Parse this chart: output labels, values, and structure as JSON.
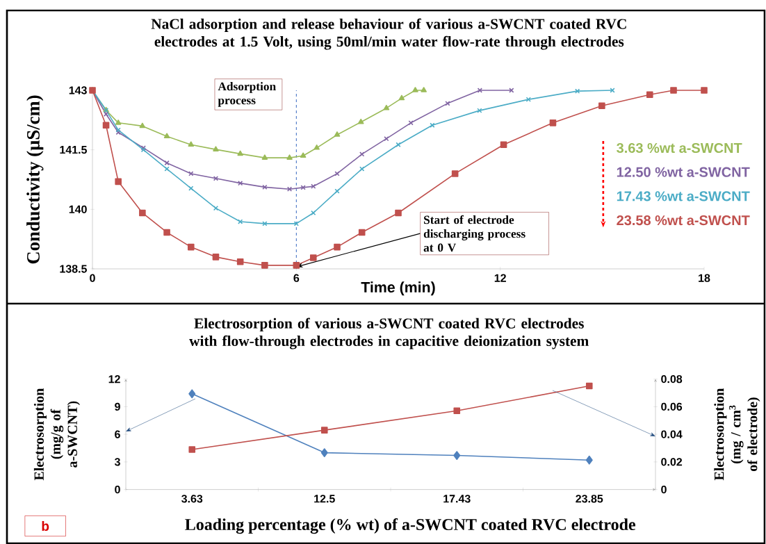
{
  "chart_data": [
    {
      "type": "line",
      "title": "NaCl adsorption and release behaviour of various a-SWCNT coated RVC electrodes at 1.5 Volt, using 50ml/min water flow-rate through electrodes",
      "xlabel": "Time (min)",
      "ylabel": "Conductivity (µS/cm)",
      "xlim": [
        0,
        18
      ],
      "ylim": [
        138.5,
        143
      ],
      "xticks": [
        0,
        6,
        12,
        18
      ],
      "yticks": [
        138.5,
        140,
        141.5,
        143
      ],
      "ref_lines": [
        {
          "axis": "x",
          "value": 6,
          "color": "#4472c4",
          "line_style": "dashed"
        }
      ],
      "annotations": [
        "Adsorption process",
        {
          "text": "Start of electrode discharging process at 0 V",
          "x": 6,
          "y": 138.55
        }
      ],
      "series": [
        {
          "name": "3.63 %wt a-SWCNT",
          "color": "#9bbb59",
          "marker": "triangle",
          "x": [
            0,
            0.4,
            0.76,
            1.47,
            2.19,
            2.9,
            3.63,
            4.35,
            5.07,
            5.8,
            6.2,
            6.6,
            7.2,
            7.9,
            8.65,
            9.1,
            9.5,
            9.75
          ],
          "values": [
            143,
            142.5,
            142.18,
            142.1,
            141.84,
            141.63,
            141.51,
            141.4,
            141.3,
            141.3,
            141.35,
            141.55,
            141.88,
            142.2,
            142.55,
            142.8,
            143,
            143
          ]
        },
        {
          "name": "12.50 %wt a-SWCNT",
          "color": "#8064a2",
          "marker": "cross",
          "x": [
            0,
            0.4,
            0.76,
            1.5,
            2.19,
            2.9,
            3.63,
            4.35,
            5.07,
            5.8,
            6.2,
            6.5,
            7.2,
            7.93,
            8.65,
            9.37,
            10.45,
            11.4,
            12.33
          ],
          "values": [
            143,
            142.4,
            141.94,
            141.55,
            141.17,
            140.9,
            140.78,
            140.66,
            140.56,
            140.51,
            140.55,
            140.58,
            140.9,
            141.39,
            141.78,
            142.18,
            142.67,
            143,
            143
          ]
        },
        {
          "name": "17.43 %wt a-SWCNT",
          "color": "#4bacc6",
          "marker": "cross",
          "x": [
            0,
            0.4,
            0.76,
            1.5,
            2.19,
            2.9,
            3.63,
            4.35,
            5.07,
            6.0,
            6.5,
            7.2,
            7.93,
            9.0,
            10.0,
            11.39,
            12.83,
            14.27,
            15.3
          ],
          "values": [
            143,
            142.5,
            142.0,
            141.5,
            141.02,
            140.53,
            140.03,
            139.69,
            139.64,
            139.64,
            139.91,
            140.46,
            141.02,
            141.63,
            142.12,
            142.49,
            142.77,
            142.98,
            143
          ]
        },
        {
          "name": "23.58 %wt a-SWCNT",
          "color": "#c0504d",
          "marker": "square",
          "x": [
            0,
            0.4,
            0.76,
            1.47,
            2.19,
            2.9,
            3.63,
            4.35,
            5.07,
            6.0,
            6.5,
            7.2,
            7.93,
            9.0,
            10.67,
            12.1,
            13.55,
            14.99,
            16.4,
            17.1,
            18
          ],
          "values": [
            143,
            142.12,
            140.7,
            139.91,
            139.42,
            139.05,
            138.8,
            138.68,
            138.59,
            138.59,
            138.78,
            139.05,
            139.42,
            139.91,
            140.9,
            141.63,
            142.18,
            142.61,
            142.89,
            143,
            143
          ]
        }
      ]
    },
    {
      "type": "line",
      "title": "Electrosorption of various a-SWCNT coated RVC electrodes with flow-through electrodes in capacitive deionization system",
      "xlabel": "Loading percentage (% wt) of a-SWCNT coated RVC electrode",
      "ylabel": "Electrosorption (mg/g of a-SWCNT)",
      "y2label": "Electrosorption (mg / cm$^{3}$ of electrode)",
      "categories": [
        "3.63",
        "12.5",
        "17.43",
        "23.85"
      ],
      "ylim": [
        0,
        12
      ],
      "yticks": [
        0,
        3,
        6,
        9,
        12
      ],
      "y2lim": [
        0,
        0.08
      ],
      "y2ticks": [
        0,
        0.02,
        0.04,
        0.06,
        0.08
      ],
      "annotations": [
        "b"
      ],
      "series": [
        {
          "color": "#4f81bd",
          "marker": "diamond",
          "values": [
            10.4,
            4.0,
            3.7,
            3.2
          ]
        },
        {
          "color": "#c0504d",
          "marker": "square",
          "axis": "y2",
          "values": [
            0.029,
            0.043,
            0.057,
            0.075
          ]
        }
      ]
    }
  ]
}
